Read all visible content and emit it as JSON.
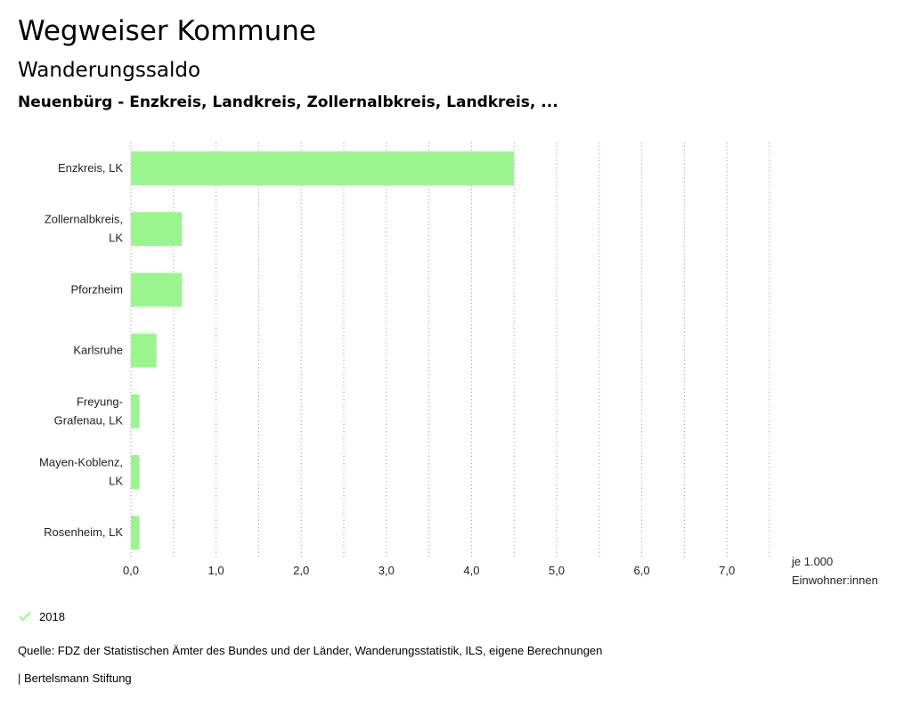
{
  "header": {
    "title": "Wegweiser Kommune",
    "subtitle": "Wanderungssaldo",
    "context": "Neuenbürg - Enzkreis, Landkreis, Zollernalbkreis, Landkreis, ..."
  },
  "chart_data": {
    "type": "bar",
    "orientation": "horizontal",
    "categories": [
      [
        "Enzkreis, LK"
      ],
      [
        "Zollernalbkreis,",
        "LK"
      ],
      [
        "Pforzheim"
      ],
      [
        "Karlsruhe"
      ],
      [
        "Freyung-",
        "Grafenau, LK"
      ],
      [
        "Mayen-Koblenz,",
        "LK"
      ],
      [
        "Rosenheim, LK"
      ]
    ],
    "series": [
      {
        "name": "2018",
        "values": [
          4.5,
          0.6,
          0.6,
          0.3,
          0.1,
          0.1,
          0.1
        ]
      }
    ],
    "xlim": [
      0,
      7.5
    ],
    "xticks": [
      0,
      1,
      2,
      3,
      4,
      5,
      6,
      7
    ],
    "xtick_labels": [
      "0,0",
      "1,0",
      "2,0",
      "3,0",
      "4,0",
      "5,0",
      "6,0",
      "7,0"
    ],
    "xlabel": [
      "je 1.000",
      "Einwohner:innen"
    ],
    "grid": "dotted vertical",
    "legend_position": "bottom-left"
  },
  "colors": {
    "bar": "#9bf58f",
    "grid": "#999999",
    "check": "#9bf58f"
  },
  "legend": {
    "check_icon": "check-icon",
    "label": "2018"
  },
  "footer": {
    "source": "Quelle: FDZ der Statistischen Ämter des Bundes und der Länder, Wanderungsstatistik, ILS, eigene Berechnungen",
    "publisher": "| Bertelsmann Stiftung"
  }
}
